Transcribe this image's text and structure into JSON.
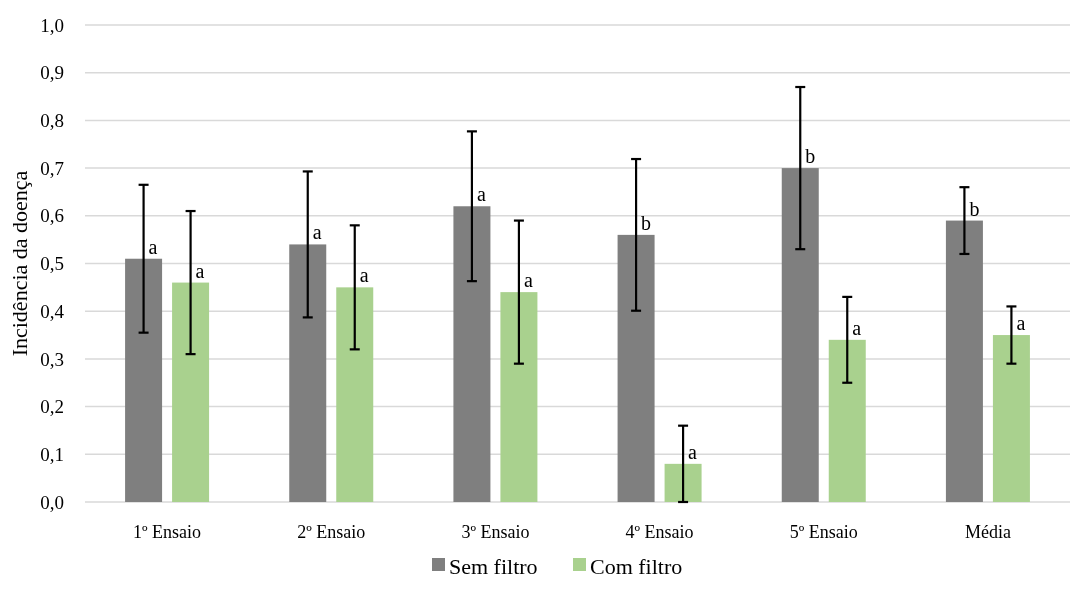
{
  "chart_data": {
    "type": "bar",
    "ylabel": "Incidência da doença",
    "categories": [
      "1º Ensaio",
      "2º Ensaio",
      "3º Ensaio",
      "4º Ensaio",
      "5º Ensaio",
      "Média"
    ],
    "series": [
      {
        "name": "Sem filtro",
        "color": "#7f7f7f",
        "values": [
          0.51,
          0.54,
          0.62,
          0.56,
          0.7,
          0.59
        ],
        "errors": [
          0.155,
          0.153,
          0.157,
          0.159,
          0.17,
          0.07
        ]
      },
      {
        "name": "Com filtro",
        "color": "#a9d18e",
        "values": [
          0.46,
          0.45,
          0.44,
          0.08,
          0.34,
          0.35
        ],
        "errors": [
          0.15,
          0.13,
          0.15,
          0.08,
          0.09,
          0.06
        ]
      }
    ],
    "annotations": [
      "a",
      "a",
      "a",
      "a",
      "a",
      "a",
      "b",
      "a",
      "b",
      "a",
      "b",
      "a"
    ],
    "ylim": [
      0,
      1
    ],
    "yticks": [
      {
        "value": 0,
        "label": "0,0"
      },
      {
        "value": 0.1,
        "label": "0,1"
      },
      {
        "value": 0.2,
        "label": "0,2"
      },
      {
        "value": 0.3,
        "label": "0,3"
      },
      {
        "value": 0.4,
        "label": "0,4"
      },
      {
        "value": 0.5,
        "label": "0,5"
      },
      {
        "value": 0.6,
        "label": "0,6"
      },
      {
        "value": 0.7,
        "label": "0,7"
      },
      {
        "value": 0.8,
        "label": "0,8"
      },
      {
        "value": 0.9,
        "label": "0,9"
      },
      {
        "value": 1,
        "label": "1,0"
      }
    ],
    "grid": "y",
    "legend": "bottom"
  }
}
